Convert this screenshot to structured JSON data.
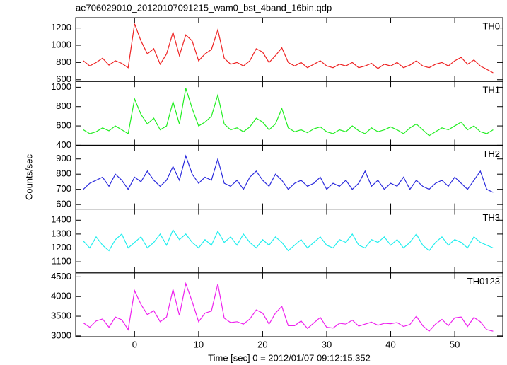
{
  "chart_data": [
    {
      "type": "line",
      "title": "ae706029010_20120107091215_wam0_bst_4band_16bin.qdp",
      "x": [
        -8,
        -7,
        -6,
        -5,
        -4,
        -3,
        -2,
        -1,
        0,
        1,
        2,
        3,
        4,
        5,
        6,
        7,
        8,
        9,
        10,
        11,
        12,
        13,
        14,
        15,
        16,
        17,
        18,
        19,
        20,
        21,
        22,
        23,
        24,
        25,
        26,
        27,
        28,
        29,
        30,
        31,
        32,
        33,
        34,
        35,
        36,
        37,
        38,
        39,
        40,
        41,
        42,
        43,
        44,
        45,
        46,
        47,
        48,
        49,
        50,
        51,
        52,
        53,
        54,
        55,
        56
      ],
      "series": [
        {
          "name": "TH0",
          "color": "#ee2222",
          "values": [
            820,
            760,
            800,
            850,
            770,
            820,
            790,
            740,
            1250,
            1050,
            900,
            960,
            780,
            900,
            1150,
            880,
            1120,
            1050,
            820,
            900,
            950,
            1180,
            850,
            780,
            800,
            760,
            820,
            960,
            920,
            800,
            880,
            970,
            800,
            760,
            800,
            740,
            780,
            820,
            760,
            740,
            780,
            760,
            800,
            740,
            760,
            790,
            730,
            780,
            760,
            800,
            740,
            770,
            820,
            760,
            740,
            780,
            800,
            760,
            820,
            860,
            780,
            830,
            760,
            720,
            680
          ]
        }
      ],
      "xlim": [
        -9.2,
        57.5
      ],
      "xticks": [
        0,
        10,
        20,
        30,
        40,
        50
      ],
      "ylim": [
        580,
        1320
      ],
      "yticks": [
        600,
        800,
        1000,
        1200
      ]
    },
    {
      "type": "line",
      "x": [
        -8,
        -7,
        -6,
        -5,
        -4,
        -3,
        -2,
        -1,
        0,
        1,
        2,
        3,
        4,
        5,
        6,
        7,
        8,
        9,
        10,
        11,
        12,
        13,
        14,
        15,
        16,
        17,
        18,
        19,
        20,
        21,
        22,
        23,
        24,
        25,
        26,
        27,
        28,
        29,
        30,
        31,
        32,
        33,
        34,
        35,
        36,
        37,
        38,
        39,
        40,
        41,
        42,
        43,
        44,
        45,
        46,
        47,
        48,
        49,
        50,
        51,
        52,
        53,
        54,
        55,
        56
      ],
      "series": [
        {
          "name": "TH1",
          "color": "#22ee22",
          "values": [
            560,
            520,
            540,
            580,
            550,
            600,
            560,
            520,
            880,
            720,
            620,
            680,
            560,
            600,
            850,
            620,
            990,
            780,
            600,
            640,
            700,
            920,
            620,
            560,
            580,
            540,
            590,
            680,
            640,
            560,
            620,
            780,
            580,
            540,
            560,
            530,
            570,
            590,
            540,
            520,
            560,
            540,
            600,
            550,
            520,
            580,
            540,
            560,
            590,
            560,
            520,
            580,
            620,
            560,
            500,
            540,
            580,
            560,
            600,
            640,
            560,
            600,
            540,
            520,
            560
          ]
        }
      ],
      "xlim": [
        -9.2,
        57.5
      ],
      "xticks": [
        0,
        10,
        20,
        30,
        40,
        50
      ],
      "ylim": [
        400,
        1060
      ],
      "yticks": [
        400,
        600,
        800,
        1000
      ]
    },
    {
      "type": "line",
      "ylabel": "Counts/sec",
      "x": [
        -8,
        -7,
        -6,
        -5,
        -4,
        -3,
        -2,
        -1,
        0,
        1,
        2,
        3,
        4,
        5,
        6,
        7,
        8,
        9,
        10,
        11,
        12,
        13,
        14,
        15,
        16,
        17,
        18,
        19,
        20,
        21,
        22,
        23,
        24,
        25,
        26,
        27,
        28,
        29,
        30,
        31,
        32,
        33,
        34,
        35,
        36,
        37,
        38,
        39,
        40,
        41,
        42,
        43,
        44,
        45,
        46,
        47,
        48,
        49,
        50,
        51,
        52,
        53,
        54,
        55,
        56
      ],
      "series": [
        {
          "name": "TH2",
          "color": "#2b2bdd",
          "values": [
            700,
            740,
            760,
            780,
            720,
            800,
            760,
            700,
            780,
            750,
            820,
            760,
            720,
            760,
            850,
            760,
            920,
            800,
            740,
            780,
            760,
            900,
            740,
            720,
            760,
            700,
            780,
            820,
            760,
            720,
            800,
            760,
            700,
            740,
            760,
            720,
            740,
            780,
            700,
            740,
            720,
            760,
            700,
            740,
            820,
            720,
            760,
            700,
            740,
            720,
            780,
            700,
            760,
            720,
            700,
            740,
            760,
            720,
            780,
            740,
            700,
            760,
            820,
            700,
            680
          ]
        }
      ],
      "xlim": [
        -9.2,
        57.5
      ],
      "xticks": [
        0,
        10,
        20,
        30,
        40,
        50
      ],
      "ylim": [
        570,
        990
      ],
      "yticks": [
        600,
        700,
        800,
        900
      ]
    },
    {
      "type": "line",
      "x": [
        -8,
        -7,
        -6,
        -5,
        -4,
        -3,
        -2,
        -1,
        0,
        1,
        2,
        3,
        4,
        5,
        6,
        7,
        8,
        9,
        10,
        11,
        12,
        13,
        14,
        15,
        16,
        17,
        18,
        19,
        20,
        21,
        22,
        23,
        24,
        25,
        26,
        27,
        28,
        29,
        30,
        31,
        32,
        33,
        34,
        35,
        36,
        37,
        38,
        39,
        40,
        41,
        42,
        43,
        44,
        45,
        46,
        47,
        48,
        49,
        50,
        51,
        52,
        53,
        54,
        55,
        56
      ],
      "series": [
        {
          "name": "TH3",
          "color": "#22eeee",
          "values": [
            1250,
            1200,
            1280,
            1220,
            1180,
            1260,
            1300,
            1200,
            1240,
            1280,
            1200,
            1240,
            1300,
            1220,
            1330,
            1260,
            1300,
            1240,
            1200,
            1260,
            1220,
            1320,
            1240,
            1280,
            1220,
            1300,
            1240,
            1200,
            1260,
            1220,
            1280,
            1240,
            1180,
            1220,
            1260,
            1200,
            1240,
            1280,
            1220,
            1200,
            1260,
            1240,
            1300,
            1220,
            1200,
            1260,
            1240,
            1280,
            1220,
            1260,
            1200,
            1240,
            1300,
            1220,
            1180,
            1240,
            1280,
            1220,
            1260,
            1240,
            1200,
            1280,
            1240,
            1220,
            1200
          ]
        }
      ],
      "xlim": [
        -9.2,
        57.5
      ],
      "xticks": [
        0,
        10,
        20,
        30,
        40,
        50
      ],
      "ylim": [
        1020,
        1480
      ],
      "yticks": [
        1100,
        1200,
        1300,
        1400
      ]
    },
    {
      "type": "line",
      "xlabel": "Time [sec] 0 = 2012/01/07 09:12:15.352",
      "x": [
        -8,
        -7,
        -6,
        -5,
        -4,
        -3,
        -2,
        -1,
        0,
        1,
        2,
        3,
        4,
        5,
        6,
        7,
        8,
        9,
        10,
        11,
        12,
        13,
        14,
        15,
        16,
        17,
        18,
        19,
        20,
        21,
        22,
        23,
        24,
        25,
        26,
        27,
        28,
        29,
        30,
        31,
        32,
        33,
        34,
        35,
        36,
        37,
        38,
        39,
        40,
        41,
        42,
        43,
        44,
        45,
        46,
        47,
        48,
        49,
        50,
        51,
        52,
        53,
        54,
        55,
        56
      ],
      "series": [
        {
          "name": "TH0123",
          "color": "#ee22ee",
          "values": [
            3330,
            3220,
            3380,
            3430,
            3220,
            3480,
            3410,
            3160,
            4150,
            3800,
            3540,
            3640,
            3360,
            3480,
            4180,
            3520,
            4330,
            3870,
            3360,
            3580,
            3630,
            4320,
            3450,
            3340,
            3360,
            3300,
            3430,
            3660,
            3580,
            3300,
            3580,
            3750,
            3260,
            3260,
            3380,
            3190,
            3330,
            3470,
            3220,
            3200,
            3320,
            3300,
            3400,
            3250,
            3300,
            3350,
            3270,
            3320,
            3310,
            3340,
            3240,
            3290,
            3500,
            3260,
            3120,
            3300,
            3420,
            3260,
            3460,
            3480,
            3240,
            3470,
            3360,
            3160,
            3120
          ]
        }
      ],
      "xlim": [
        -9.2,
        57.5
      ],
      "xticks": [
        0,
        10,
        20,
        30,
        40,
        50
      ],
      "ylim": [
        2980,
        4600
      ],
      "yticks": [
        3000,
        3500,
        4000,
        4500
      ]
    }
  ]
}
